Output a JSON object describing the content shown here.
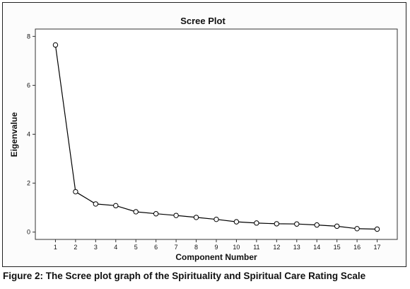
{
  "chart_data": {
    "type": "line",
    "title": "Scree Plot",
    "xlabel": "Component Number",
    "ylabel": "Eigenvalue",
    "x": [
      1,
      2,
      3,
      4,
      5,
      6,
      7,
      8,
      9,
      10,
      11,
      12,
      13,
      14,
      15,
      16,
      17
    ],
    "values": [
      7.65,
      1.65,
      1.15,
      1.08,
      0.83,
      0.75,
      0.68,
      0.6,
      0.52,
      0.42,
      0.37,
      0.34,
      0.33,
      0.29,
      0.24,
      0.14,
      0.12
    ],
    "yticks": [
      0,
      2,
      4,
      6,
      8
    ],
    "ylim": [
      -0.3,
      8.3
    ],
    "xlim": [
      0,
      18
    ],
    "grid": false,
    "line_color": "#000000",
    "marker": "open-circle"
  },
  "caption": "Figure 2: The Scree plot graph of the Spirituality and Spiritual Care Rating Scale"
}
